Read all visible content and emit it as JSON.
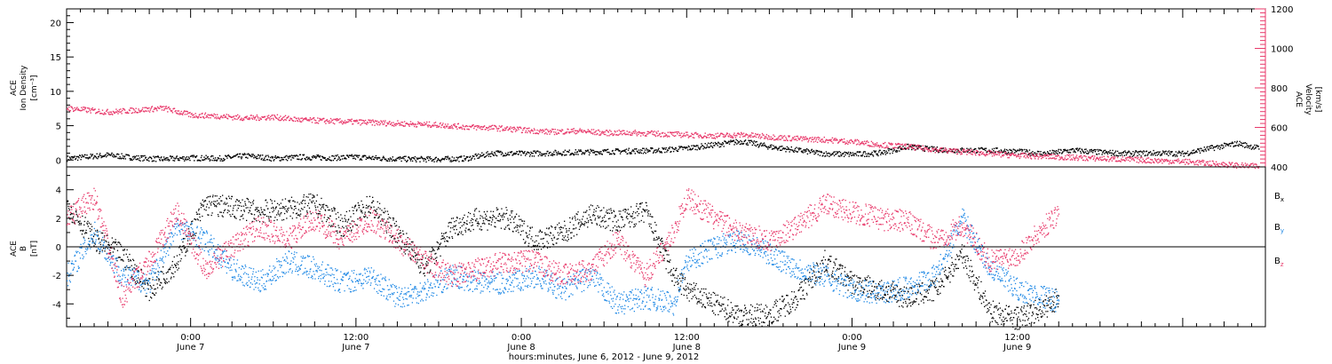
{
  "colors": {
    "black": "#000000",
    "blue": "#1e88e5",
    "red": "#e8386a"
  },
  "chart_data": [
    {
      "type": "scatter",
      "panel": "top",
      "ylabel_lines": [
        "ACE",
        "Ion Density",
        "[cm⁻³]"
      ],
      "y2label_lines": [
        "ACE",
        "Velocity",
        "[km/s]"
      ],
      "ylim": [
        -1,
        22
      ],
      "y2lim": [
        400,
        1200
      ],
      "yticks": [
        "0",
        "5",
        "10",
        "15",
        "20"
      ],
      "y2ticks": [
        "400",
        "600",
        "800",
        "1000",
        "1200"
      ],
      "x_range_hours": [
        -9,
        78
      ],
      "series": [
        {
          "axis": "left",
          "color": "black",
          "x": [
            -9,
            -6,
            -4,
            -2,
            0,
            2,
            4,
            6,
            8,
            10,
            12,
            14,
            16,
            18,
            20,
            22,
            24,
            26,
            28,
            30,
            32,
            34,
            36,
            38,
            40,
            42,
            44,
            46,
            48,
            50,
            52,
            54,
            56,
            58,
            60,
            62,
            64,
            66,
            68,
            70,
            72,
            74,
            76,
            77.5
          ],
          "y": [
            0.3,
            0.8,
            0.4,
            0.2,
            0.4,
            0.3,
            0.7,
            0.3,
            0.5,
            0.4,
            0.5,
            0.3,
            0.2,
            0.2,
            0.3,
            1.1,
            1.0,
            1.1,
            1.2,
            1.3,
            1.4,
            1.5,
            1.8,
            2.3,
            2.8,
            2.0,
            1.5,
            1.0,
            0.9,
            1.1,
            2.0,
            1.6,
            1.5,
            1.5,
            1.3,
            1.0,
            1.5,
            1.2,
            1.0,
            1.1,
            1.0,
            1.8,
            2.5,
            1.8
          ]
        },
        {
          "axis": "right",
          "color": "red",
          "x": [
            -9,
            -6,
            -4,
            -2,
            0,
            2,
            4,
            6,
            8,
            10,
            12,
            14,
            16,
            18,
            20,
            22,
            24,
            26,
            28,
            30,
            32,
            34,
            36,
            38,
            40,
            42,
            44,
            46,
            48,
            50,
            52,
            54,
            56,
            58,
            60,
            62,
            64,
            66,
            68,
            70,
            72,
            74,
            76,
            77.5
          ],
          "y": [
            700,
            680,
            690,
            700,
            665,
            660,
            650,
            655,
            640,
            635,
            630,
            625,
            620,
            615,
            605,
            600,
            590,
            580,
            585,
            575,
            575,
            570,
            565,
            560,
            565,
            555,
            545,
            540,
            530,
            515,
            505,
            490,
            480,
            470,
            460,
            455,
            450,
            445,
            440,
            435,
            430,
            420,
            410,
            405
          ]
        }
      ]
    },
    {
      "type": "scatter",
      "panel": "bottom",
      "ylabel_lines": [
        "ACE",
        "B",
        "[nT]"
      ],
      "ylim": [
        -5.6,
        5.6
      ],
      "yticks": [
        "-4",
        "-2",
        "0",
        "2",
        "4"
      ],
      "x_range_hours": [
        -9,
        78
      ],
      "xticks": [
        {
          "hour": 0,
          "time": "0:00",
          "date": "June 7"
        },
        {
          "hour": 12,
          "time": "12:00",
          "date": "June 7"
        },
        {
          "hour": 24,
          "time": "0:00",
          "date": "June 8"
        },
        {
          "hour": 36,
          "time": "12:00",
          "date": "June 8"
        },
        {
          "hour": 48,
          "time": "0:00",
          "date": "June 9"
        },
        {
          "hour": 60,
          "time": "12:00",
          "date": "June 9"
        }
      ],
      "xlabel": "hours:minutes, June  6, 2012 - June  9, 2012",
      "legend": [
        {
          "label": "B",
          "sub": "x",
          "color": "black"
        },
        {
          "label": "B",
          "sub": "y",
          "color": "blue"
        },
        {
          "label": "B",
          "sub": "z",
          "color": "red"
        }
      ],
      "series": [
        {
          "name": "Bx",
          "color": "black",
          "x": [
            -9,
            -7,
            -5,
            -3,
            -1,
            1,
            3,
            5,
            7,
            9,
            11,
            13,
            15,
            17,
            19,
            21,
            23,
            25,
            27,
            29,
            31,
            33,
            35,
            36,
            38,
            40,
            42,
            44,
            46,
            48,
            50,
            52,
            54,
            56,
            58,
            60,
            62,
            63
          ],
          "y": [
            3.0,
            0.5,
            -0.5,
            -3.0,
            -1.0,
            3.0,
            2.8,
            2.5,
            2.7,
            3.0,
            1.5,
            3.0,
            1.0,
            -1.5,
            1.5,
            2.0,
            2.0,
            0.5,
            1.0,
            2.3,
            1.8,
            2.5,
            -2.0,
            -3.0,
            -4.0,
            -4.8,
            -4.7,
            -3.5,
            -1.0,
            -2.5,
            -3.0,
            -3.5,
            -3.0,
            -0.5,
            -4.5,
            -5.0,
            -4.2,
            -3.5
          ]
        },
        {
          "name": "By",
          "color": "blue",
          "x": [
            -9,
            -7,
            -5,
            -3,
            -1,
            1,
            3,
            5,
            7,
            9,
            11,
            13,
            15,
            17,
            19,
            21,
            23,
            25,
            27,
            29,
            31,
            33,
            35,
            36,
            38,
            40,
            42,
            44,
            46,
            48,
            50,
            52,
            54,
            56,
            58,
            60,
            62,
            63
          ],
          "y": [
            -2.0,
            1.0,
            -2.0,
            -2.5,
            1.5,
            0.5,
            -1.5,
            -2.5,
            -1.0,
            -1.5,
            -2.5,
            -2.0,
            -3.5,
            -3.0,
            -2.0,
            -2.5,
            -2.5,
            -2.0,
            -3.0,
            -2.0,
            -4.0,
            -3.5,
            -4.0,
            -1.0,
            0.0,
            0.5,
            -0.5,
            -1.5,
            -2.0,
            -3.0,
            -3.2,
            -2.8,
            -2.0,
            2.0,
            -1.5,
            -3.0,
            -3.5,
            -3.8
          ]
        },
        {
          "name": "Bz",
          "color": "red",
          "x": [
            -9,
            -7,
            -5,
            -3,
            -1,
            1,
            3,
            5,
            7,
            9,
            11,
            13,
            15,
            17,
            19,
            21,
            23,
            25,
            27,
            29,
            31,
            33,
            35,
            36,
            38,
            40,
            42,
            44,
            46,
            48,
            50,
            52,
            54,
            56,
            58,
            60,
            62,
            63
          ],
          "y": [
            2.0,
            3.5,
            -3.5,
            -1.0,
            2.5,
            -1.5,
            0.0,
            1.5,
            0.5,
            2.0,
            0.5,
            2.0,
            0.5,
            -1.0,
            -2.0,
            -1.5,
            -1.0,
            -1.0,
            -2.0,
            -1.5,
            0.5,
            -2.0,
            1.0,
            3.5,
            2.0,
            1.0,
            0.5,
            1.5,
            3.0,
            2.5,
            2.0,
            1.8,
            0.5,
            1.5,
            -1.0,
            -0.5,
            1.5,
            2.5
          ]
        }
      ]
    }
  ]
}
